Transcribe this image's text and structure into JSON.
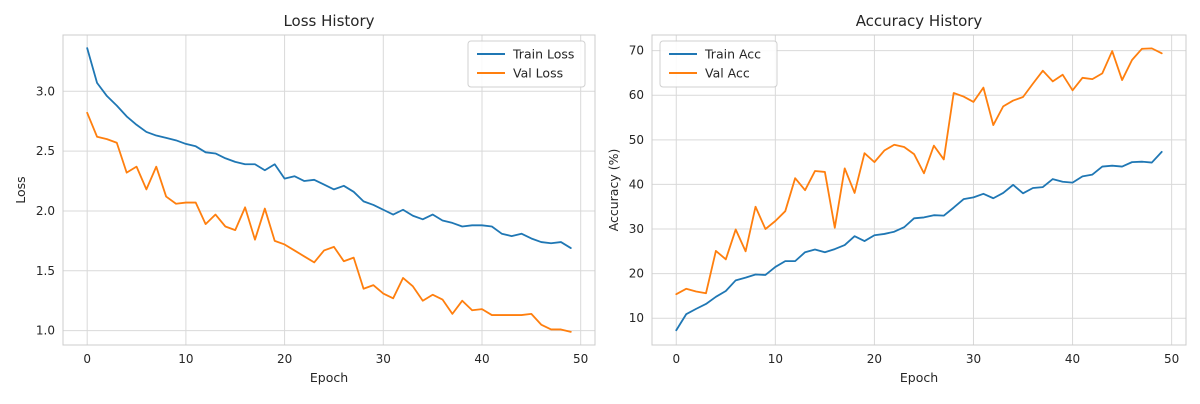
{
  "chart_data": [
    {
      "type": "line",
      "title": "Loss History",
      "xlabel": "Epoch",
      "ylabel": "Loss",
      "xlim": [
        -2.45,
        51.45
      ],
      "ylim": [
        0.88,
        3.47
      ],
      "xticks": [
        0,
        10,
        20,
        30,
        40,
        50
      ],
      "yticks": [
        1.0,
        1.5,
        2.0,
        2.5,
        3.0
      ],
      "ytick_decimals": 1,
      "grid": true,
      "legend_position": "top-right",
      "x": [
        0,
        1,
        2,
        3,
        4,
        5,
        6,
        7,
        8,
        9,
        10,
        11,
        12,
        13,
        14,
        15,
        16,
        17,
        18,
        19,
        20,
        21,
        22,
        23,
        24,
        25,
        26,
        27,
        28,
        29,
        30,
        31,
        32,
        33,
        34,
        35,
        36,
        37,
        38,
        39,
        40,
        41,
        42,
        43,
        44,
        45,
        46,
        47,
        48,
        49
      ],
      "series": [
        {
          "name": "Train Loss",
          "color": "#1f77b4",
          "values": [
            3.36,
            3.07,
            2.96,
            2.88,
            2.79,
            2.72,
            2.66,
            2.63,
            2.61,
            2.59,
            2.56,
            2.54,
            2.49,
            2.48,
            2.44,
            2.41,
            2.39,
            2.39,
            2.34,
            2.39,
            2.27,
            2.29,
            2.25,
            2.26,
            2.22,
            2.18,
            2.21,
            2.16,
            2.08,
            2.05,
            2.01,
            1.97,
            2.01,
            1.96,
            1.93,
            1.97,
            1.92,
            1.9,
            1.87,
            1.88,
            1.88,
            1.87,
            1.81,
            1.79,
            1.81,
            1.77,
            1.74,
            1.73,
            1.74,
            1.69
          ]
        },
        {
          "name": "Val Loss",
          "color": "#ff7f0e",
          "values": [
            2.82,
            2.62,
            2.6,
            2.57,
            2.32,
            2.37,
            2.18,
            2.37,
            2.12,
            2.06,
            2.07,
            2.07,
            1.89,
            1.97,
            1.87,
            1.84,
            2.03,
            1.76,
            2.02,
            1.75,
            1.72,
            1.67,
            1.62,
            1.57,
            1.67,
            1.7,
            1.58,
            1.61,
            1.35,
            1.38,
            1.31,
            1.27,
            1.44,
            1.37,
            1.25,
            1.3,
            1.26,
            1.14,
            1.25,
            1.17,
            1.18,
            1.13,
            1.13,
            1.13,
            1.13,
            1.14,
            1.05,
            1.01,
            1.01,
            0.99
          ]
        }
      ]
    },
    {
      "type": "line",
      "title": "Accuracy History",
      "xlabel": "Epoch",
      "ylabel": "Accuracy (%)",
      "xlim": [
        -2.45,
        51.45
      ],
      "ylim": [
        4.0,
        73.5
      ],
      "xticks": [
        0,
        10,
        20,
        30,
        40,
        50
      ],
      "yticks": [
        10,
        20,
        30,
        40,
        50,
        60,
        70
      ],
      "ytick_decimals": 0,
      "grid": true,
      "legend_position": "top-left",
      "x": [
        0,
        1,
        2,
        3,
        4,
        5,
        6,
        7,
        8,
        9,
        10,
        11,
        12,
        13,
        14,
        15,
        16,
        17,
        18,
        19,
        20,
        21,
        22,
        23,
        24,
        25,
        26,
        27,
        28,
        29,
        30,
        31,
        32,
        33,
        34,
        35,
        36,
        37,
        38,
        39,
        40,
        41,
        42,
        43,
        44,
        45,
        46,
        47,
        48,
        49
      ],
      "series": [
        {
          "name": "Train Acc",
          "color": "#1f77b4",
          "values": [
            7.3,
            10.9,
            12.1,
            13.2,
            14.8,
            16.1,
            18.5,
            19.1,
            19.8,
            19.7,
            21.5,
            22.8,
            22.8,
            24.8,
            25.4,
            24.8,
            25.5,
            26.4,
            28.4,
            27.3,
            28.6,
            28.9,
            29.4,
            30.4,
            32.4,
            32.6,
            33.1,
            33.0,
            34.8,
            36.7,
            37.1,
            37.9,
            36.9,
            38.1,
            39.9,
            38.0,
            39.2,
            39.4,
            41.2,
            40.6,
            40.4,
            41.8,
            42.2,
            44.0,
            44.2,
            44.0,
            45.0,
            45.1,
            44.9,
            47.3
          ]
        },
        {
          "name": "Val Acc",
          "color": "#ff7f0e",
          "values": [
            15.4,
            16.6,
            16.0,
            15.6,
            25.1,
            23.2,
            29.9,
            25.0,
            35.0,
            30.0,
            31.8,
            34.0,
            41.4,
            38.7,
            43.0,
            42.8,
            30.3,
            43.6,
            38.1,
            47.0,
            45.0,
            47.6,
            48.9,
            48.4,
            46.8,
            42.5,
            48.7,
            45.6,
            60.5,
            59.7,
            58.5,
            61.7,
            53.3,
            57.5,
            58.8,
            59.6,
            62.6,
            65.5,
            63.1,
            64.6,
            61.1,
            63.9,
            63.6,
            64.9,
            69.9,
            63.4,
            67.9,
            70.4,
            70.5,
            69.4
          ]
        }
      ]
    }
  ]
}
